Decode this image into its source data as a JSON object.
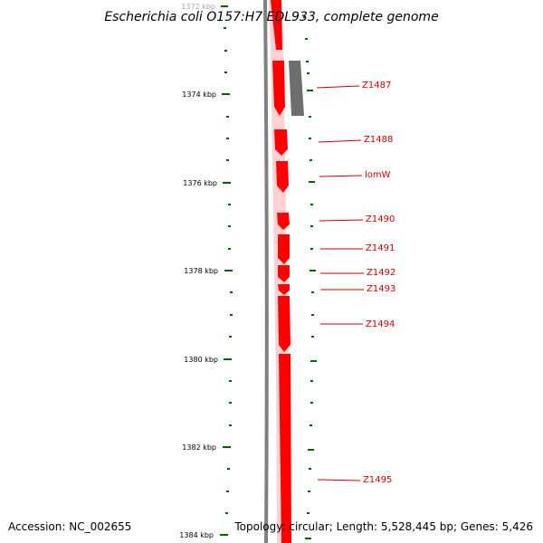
{
  "title": "Escherichia coli O157:H7 EDL933, complete genome",
  "footer": {
    "accession": "Accession: NC_002655",
    "topology": "Topology: circular; Length: 5,528,445 bp; Genes: 5,426"
  },
  "colors": {
    "forward_feature": "#ff0000",
    "reverse_feature": "#6e6e6e",
    "backbone": "#808080",
    "tick": "#006600",
    "gene_label": "#cc0000",
    "label_line": "#cc0000"
  },
  "scale": {
    "unit": "kbp",
    "labels": [
      "1372 kbp",
      "1374 kbp",
      "1376 kbp",
      "1378 kbp",
      "1380 kbp",
      "1382 kbp",
      "1384 kbp"
    ]
  },
  "genes": [
    {
      "name": "Z1487",
      "strand": "reverse"
    },
    {
      "name": "Z1488",
      "strand": "forward"
    },
    {
      "name": "lomW",
      "strand": "forward"
    },
    {
      "name": "Z1490",
      "strand": "forward"
    },
    {
      "name": "Z1491",
      "strand": "forward"
    },
    {
      "name": "Z1492",
      "strand": "forward"
    },
    {
      "name": "Z1493",
      "strand": "forward"
    },
    {
      "name": "Z1494",
      "strand": "forward"
    },
    {
      "name": "Z1495",
      "strand": "forward"
    }
  ]
}
